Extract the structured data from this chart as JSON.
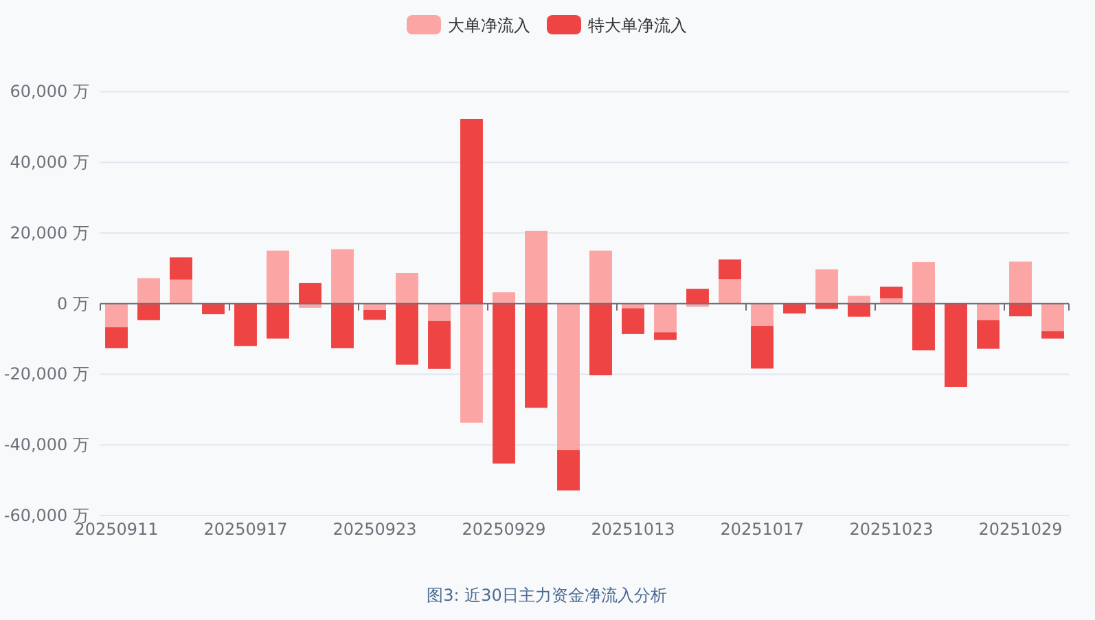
{
  "chart_data": {
    "type": "bar",
    "title": "图3: 近30日主力资金净流入分析",
    "categories": [
      "20250911",
      null,
      null,
      null,
      "20250917",
      null,
      null,
      null,
      "20250923",
      null,
      null,
      null,
      "20250929",
      null,
      null,
      null,
      "20251013",
      null,
      null,
      null,
      "20251017",
      null,
      null,
      null,
      "20251023",
      null,
      null,
      null,
      "20251029",
      null
    ],
    "stacked": true,
    "series": [
      {
        "name": "大单净流入",
        "color": "#fca5a5",
        "values": [
          -6700,
          7200,
          6800,
          0,
          null,
          15000,
          -1200,
          15400,
          -1800,
          8700,
          -4900,
          -33700,
          3200,
          20600,
          -41500,
          15000,
          -1300,
          -8100,
          -900,
          6900,
          -6300,
          null,
          9700,
          2200,
          1500,
          11800,
          0,
          -4700,
          11900,
          -7800
        ]
      },
      {
        "name": "特大单净流入",
        "color": "#ef4444",
        "values": [
          -5900,
          -4700,
          6300,
          -3000,
          -12000,
          -9900,
          5800,
          -12600,
          -2800,
          -17300,
          -13600,
          52300,
          -45300,
          -29500,
          -11400,
          -20300,
          -7300,
          -2200,
          4200,
          5600,
          -12100,
          -2800,
          -1500,
          -3700,
          3300,
          -13200,
          -23600,
          -8100,
          -3600,
          -2100
        ]
      }
    ],
    "ylim": [
      -60000,
      60000
    ],
    "yticks": [
      {
        "value": -60000,
        "label": "-60,000 万"
      },
      {
        "value": -40000,
        "label": "-40,000 万"
      },
      {
        "value": -20000,
        "label": "-20,000 万"
      },
      {
        "value": 0,
        "label": "0 万"
      },
      {
        "value": 20000,
        "label": "20,000 万"
      },
      {
        "value": 40000,
        "label": "40,000 万"
      },
      {
        "value": 60000,
        "label": "60,000 万"
      }
    ],
    "grid": "y",
    "legend": "top"
  }
}
